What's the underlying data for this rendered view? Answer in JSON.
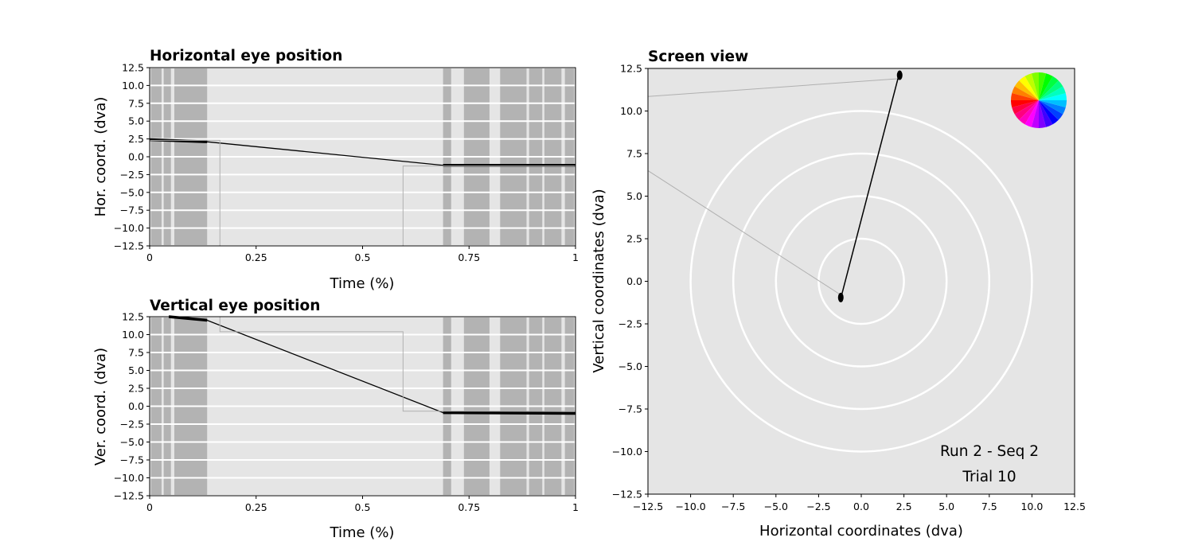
{
  "colors": {
    "plot_bg": "#e5e5e5",
    "blink_band": "#b3b3b3",
    "grid": "#ffffff",
    "trace": "#000000",
    "raw_trace": "#b0b0b0"
  },
  "chart_data": [
    {
      "id": "hor",
      "type": "line",
      "title": "Horizontal eye position",
      "xlabel": "Time (%)",
      "ylabel": "Hor. coord. (dva)",
      "xlim": [
        0,
        1
      ],
      "ylim": [
        -12.5,
        12.5
      ],
      "xticks": [
        0,
        0.25,
        0.5,
        0.75,
        1
      ],
      "xtick_labels": [
        "0",
        "0.25",
        "0.5",
        "0.75",
        "1"
      ],
      "yticks": [
        12.5,
        10.0,
        7.5,
        5.0,
        2.5,
        0.0,
        -2.5,
        -5.0,
        -7.5,
        -10.0,
        -12.5
      ],
      "ytick_labels": [
        "12.5",
        "10.0",
        "7.5",
        "5.0",
        "2.5",
        "0.0",
        "−2.5",
        "−5.0",
        "−7.5",
        "−10.0",
        "−12.5"
      ],
      "grid": "horizontal",
      "shaded_bands": [
        [
          0.003,
          0.028
        ],
        [
          0.033,
          0.05
        ],
        [
          0.058,
          0.135
        ],
        [
          0.689,
          0.708
        ],
        [
          0.738,
          0.798
        ],
        [
          0.823,
          0.885
        ],
        [
          0.891,
          0.922
        ],
        [
          0.927,
          0.967
        ],
        [
          0.975,
          0.997
        ]
      ],
      "series": [
        {
          "style": "eye",
          "points": [
            [
              0.0,
              2.4
            ],
            [
              0.135,
              2.1
            ],
            [
              0.689,
              -1.2
            ],
            [
              1.0,
              -1.2
            ]
          ]
        },
        {
          "style": "raw",
          "points": [
            [
              0.0,
              2.3
            ],
            [
              0.165,
              2.3
            ],
            [
              0.165,
              -12.5
            ],
            [
              0.595,
              -12.5
            ],
            [
              0.595,
              -1.3
            ],
            [
              1.0,
              -1.3
            ]
          ]
        }
      ]
    },
    {
      "id": "ver",
      "type": "line",
      "title": "Vertical eye position",
      "xlabel": "Time (%)",
      "ylabel": "Ver. coord. (dva)",
      "xlim": [
        0,
        1
      ],
      "ylim": [
        -12.5,
        12.5
      ],
      "xticks": [
        0,
        0.25,
        0.5,
        0.75,
        1
      ],
      "xtick_labels": [
        "0",
        "0.25",
        "0.5",
        "0.75",
        "1"
      ],
      "yticks": [
        12.5,
        10.0,
        7.5,
        5.0,
        2.5,
        0.0,
        -2.5,
        -5.0,
        -7.5,
        -10.0,
        -12.5
      ],
      "ytick_labels": [
        "12.5",
        "10.0",
        "7.5",
        "5.0",
        "2.5",
        "0.0",
        "−2.5",
        "−5.0",
        "−7.5",
        "−10.0",
        "−12.5"
      ],
      "grid": "horizontal",
      "shaded_bands": [
        [
          0.003,
          0.028
        ],
        [
          0.033,
          0.05
        ],
        [
          0.058,
          0.135
        ],
        [
          0.689,
          0.708
        ],
        [
          0.738,
          0.798
        ],
        [
          0.823,
          0.885
        ],
        [
          0.891,
          0.922
        ],
        [
          0.927,
          0.967
        ],
        [
          0.975,
          0.997
        ]
      ],
      "series": [
        {
          "style": "eye",
          "points": [
            [
              0.045,
              12.5
            ],
            [
              0.135,
              12.0
            ],
            [
              0.689,
              -0.9
            ],
            [
              1.0,
              -1.0
            ]
          ]
        },
        {
          "style": "raw",
          "points": [
            [
              0.165,
              12.5
            ],
            [
              0.165,
              10.4
            ],
            [
              0.595,
              10.4
            ],
            [
              0.595,
              -0.7
            ],
            [
              1.0,
              -0.7
            ]
          ]
        }
      ]
    },
    {
      "id": "screen",
      "type": "scatter",
      "title": "Screen view",
      "xlabel": "Horizontal coordinates (dva)",
      "ylabel": "Vertical coordinates (dva)",
      "xlim": [
        -12.5,
        12.5
      ],
      "ylim": [
        -12.5,
        12.5
      ],
      "xticks": [
        -12.5,
        -10.0,
        -7.5,
        -5.0,
        -2.5,
        0.0,
        2.5,
        5.0,
        7.5,
        10.0,
        12.5
      ],
      "xtick_labels": [
        "−12.5",
        "−10.0",
        "−7.5",
        "−5.0",
        "−2.5",
        "0.0",
        "2.5",
        "5.0",
        "7.5",
        "10.0",
        "12.5"
      ],
      "yticks": [
        12.5,
        10.0,
        7.5,
        5.0,
        2.5,
        0.0,
        -2.5,
        -5.0,
        -7.5,
        -10.0,
        -12.5
      ],
      "ytick_labels": [
        "12.5",
        "10.0",
        "7.5",
        "5.0",
        "2.5",
        "0.0",
        "−2.5",
        "−5.0",
        "−7.5",
        "−10.0",
        "−12.5"
      ],
      "grid": "off",
      "circle_radii": [
        2.5,
        5.0,
        7.5,
        10.0
      ],
      "eye_path": [
        [
          -1.2,
          -1.0
        ],
        [
          2.2,
          12.1
        ]
      ],
      "eye_clusters": [
        [
          -1.2,
          -0.95
        ],
        [
          2.25,
          12.1
        ]
      ],
      "raw_path": [
        [
          -12.5,
          10.85
        ],
        [
          2.2,
          11.9
        ]
      ],
      "raw_path2": [
        [
          -12.5,
          6.5
        ],
        [
          -1.2,
          -0.8
        ]
      ],
      "color_wheel": {
        "position": "top-right",
        "segments": 24
      },
      "annotations": [
        "Run 2 - Seq 2",
        "Trial 10"
      ]
    }
  ]
}
